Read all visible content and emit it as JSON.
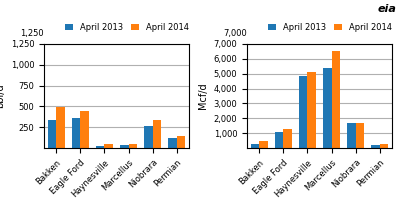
{
  "chart_data": [
    {
      "type": "bar",
      "categories": [
        "Bakken",
        "Eagle Ford",
        "Haynesville",
        "Marcellus",
        "Niobrara",
        "Permian"
      ],
      "series": [
        {
          "name": "April 2013",
          "values": [
            340,
            355,
            30,
            35,
            270,
            125
          ]
        },
        {
          "name": "April 2014",
          "values": [
            490,
            440,
            45,
            50,
            340,
            150
          ]
        }
      ],
      "y_label": "bbl/d",
      "ylim": [
        0,
        1250
      ],
      "yticks": [
        250,
        500,
        750,
        {
          "value": 1000,
          "label": "1,000"
        },
        {
          "value": 1250,
          "label": "1,250"
        }
      ],
      "grid": true,
      "legend": "upper right",
      "annotations": [
        "1,250"
      ]
    },
    {
      "type": "bar",
      "categories": [
        "Bakken",
        "Eagle Ford",
        "Haynesville",
        "Marcellus",
        "Niobrara",
        "Permian"
      ],
      "series": [
        {
          "name": "April 2013",
          "values": [
            290,
            1070,
            4850,
            5400,
            1650,
            200
          ]
        },
        {
          "name": "April 2014",
          "values": [
            480,
            1270,
            5100,
            6550,
            1650,
            285
          ]
        }
      ],
      "y_label": "Mcf/d",
      "ylim": [
        0,
        7000
      ],
      "yticks": [
        {
          "value": 1000,
          "label": "1,000"
        },
        {
          "value": 2000,
          "label": "2,000"
        },
        {
          "value": 3000,
          "label": "3,000"
        },
        {
          "value": 4000,
          "label": "4,000"
        },
        {
          "value": 5000,
          "label": "5,000"
        },
        {
          "value": 6000,
          "label": "6,000"
        },
        {
          "value": 7000,
          "label": "7,000"
        }
      ],
      "grid": true,
      "legend": "upper right",
      "annotations": [
        "7,000",
        "eia"
      ]
    }
  ]
}
